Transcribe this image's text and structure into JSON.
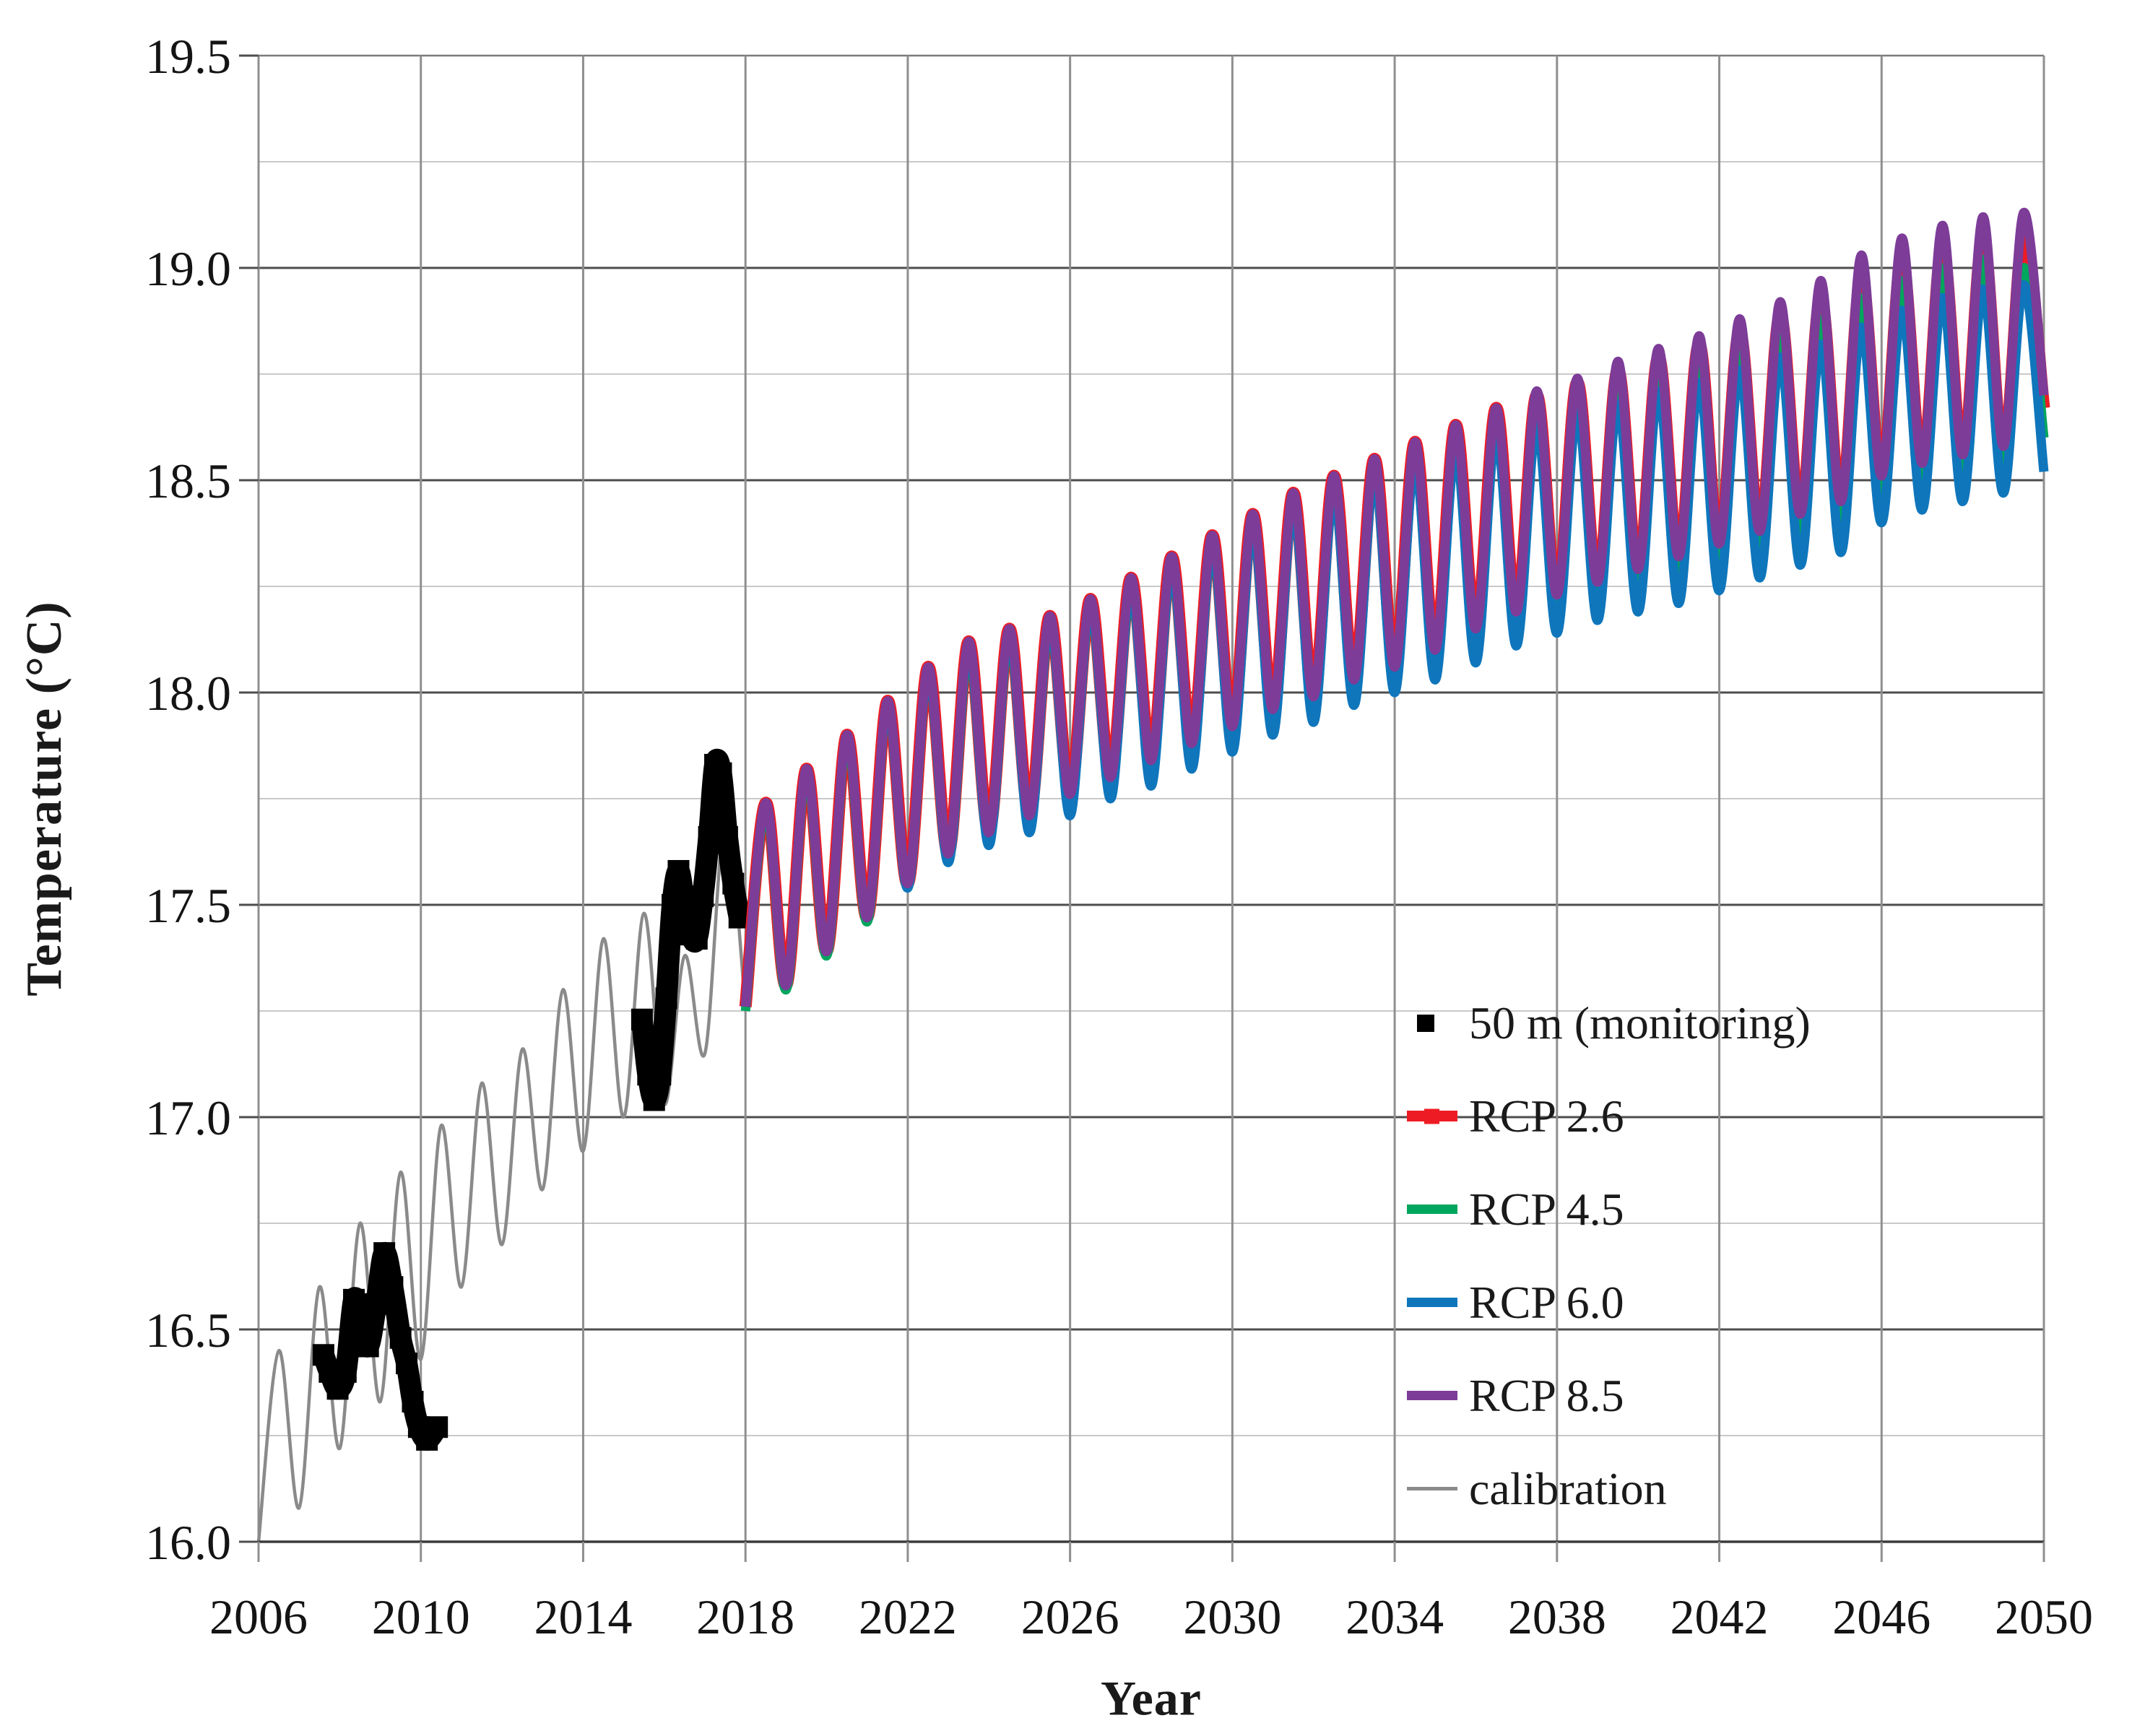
{
  "page": {
    "background": "#ffffff"
  },
  "chart_data": {
    "type": "line",
    "title": "",
    "xlabel": "Year",
    "ylabel": "Temperature (°C)",
    "xlim": [
      2006,
      2050
    ],
    "ylim": [
      16.0,
      19.5
    ],
    "x_ticks": [
      2006,
      2010,
      2014,
      2018,
      2022,
      2026,
      2030,
      2034,
      2038,
      2042,
      2046,
      2050
    ],
    "y_ticks": [
      "16.0",
      "16.5",
      "17.0",
      "17.5",
      "18.0",
      "18.5",
      "19.0",
      "19.5"
    ],
    "y_minor_ticks": [
      16.25,
      16.75,
      17.25,
      17.75,
      18.25,
      18.75,
      19.25
    ],
    "grid": "major-and-minor-horizontal, major-vertical",
    "legend_position": "inside lower right",
    "colors": {
      "grid_major": "#4d4d4d",
      "grid_minor": "#c9c9c9",
      "grid_vertical": "#8f8f8f",
      "axis_line": "#3c3c3c",
      "text": "#141414"
    },
    "series": [
      {
        "id": "monitoring",
        "label": "50 m (monitoring)",
        "color": "#000000",
        "swatch": "square",
        "segments": [
          [
            [
              2007.6,
              16.44
            ],
            [
              2007.75,
              16.4
            ],
            [
              2007.95,
              16.36
            ],
            [
              2008.15,
              16.4
            ],
            [
              2008.35,
              16.57
            ],
            [
              2008.5,
              16.52
            ],
            [
              2008.7,
              16.46
            ],
            [
              2008.9,
              16.56
            ],
            [
              2009.1,
              16.68
            ],
            [
              2009.3,
              16.6
            ],
            [
              2009.5,
              16.48
            ],
            [
              2009.65,
              16.42
            ],
            [
              2009.8,
              16.33
            ],
            [
              2009.95,
              16.27
            ],
            [
              2010.15,
              16.24
            ],
            [
              2010.4,
              16.27
            ]
          ],
          [
            [
              2015.45,
              17.23
            ],
            [
              2015.6,
              17.1
            ],
            [
              2015.75,
              17.04
            ],
            [
              2015.9,
              17.1
            ],
            [
              2016.05,
              17.28
            ],
            [
              2016.2,
              17.5
            ],
            [
              2016.35,
              17.58
            ],
            [
              2016.5,
              17.5
            ],
            [
              2016.65,
              17.43
            ],
            [
              2016.8,
              17.42
            ],
            [
              2016.95,
              17.52
            ],
            [
              2017.1,
              17.66
            ],
            [
              2017.25,
              17.83
            ],
            [
              2017.4,
              17.81
            ],
            [
              2017.55,
              17.66
            ],
            [
              2017.7,
              17.55
            ],
            [
              2017.85,
              17.47
            ]
          ]
        ]
      },
      {
        "id": "rcp26",
        "label": "RCP 2.6",
        "color": "#ed1c24",
        "swatch": "line-marker",
        "start": 2018.0,
        "step": 0.5,
        "values": [
          17.26,
          17.74,
          17.31,
          17.82,
          17.39,
          17.9,
          17.47,
          17.98,
          17.55,
          18.06,
          17.62,
          18.12,
          17.67,
          18.15,
          17.71,
          18.18,
          17.76,
          18.22,
          17.8,
          18.27,
          17.84,
          18.32,
          17.88,
          18.37,
          17.92,
          18.42,
          17.96,
          18.47,
          17.99,
          18.51,
          18.03,
          18.55,
          18.06,
          18.59,
          18.1,
          18.63,
          18.15,
          18.67,
          18.19,
          18.7,
          18.22,
          18.73,
          18.25,
          18.76,
          18.28,
          18.79,
          18.31,
          18.82,
          18.34,
          18.85,
          18.37,
          18.89,
          18.41,
          18.93,
          18.44,
          18.98,
          18.5,
          19.02,
          18.53,
          19.05,
          18.55,
          19.07,
          18.56,
          19.08,
          18.67
        ]
      },
      {
        "id": "rcp45",
        "label": "RCP 4.5",
        "color": "#00a65d",
        "swatch": "line",
        "start": 2018.0,
        "step": 0.5,
        "values": [
          17.25,
          17.73,
          17.3,
          17.81,
          17.38,
          17.89,
          17.46,
          17.97,
          17.54,
          18.05,
          17.6,
          18.1,
          17.65,
          18.13,
          17.69,
          18.16,
          17.74,
          18.2,
          17.77,
          18.24,
          17.81,
          18.29,
          17.85,
          18.34,
          17.89,
          18.39,
          17.93,
          18.44,
          17.96,
          18.48,
          18.0,
          18.52,
          18.03,
          18.56,
          18.06,
          18.6,
          18.11,
          18.63,
          18.15,
          18.66,
          18.18,
          18.69,
          18.21,
          18.72,
          18.24,
          18.75,
          18.27,
          18.78,
          18.29,
          18.81,
          18.32,
          18.84,
          18.36,
          18.88,
          18.39,
          18.93,
          18.44,
          18.97,
          18.47,
          19.0,
          18.49,
          19.02,
          18.5,
          19.0,
          18.6
        ]
      },
      {
        "id": "rcp60",
        "label": "RCP 6.0",
        "color": "#0f76bc",
        "swatch": "line",
        "start": 2018.0,
        "step": 0.5,
        "values": [
          17.26,
          17.74,
          17.31,
          17.82,
          17.39,
          17.9,
          17.47,
          17.97,
          17.54,
          18.05,
          17.6,
          18.11,
          17.64,
          18.14,
          17.67,
          18.17,
          17.71,
          18.21,
          17.75,
          18.25,
          17.78,
          18.3,
          17.82,
          18.35,
          17.86,
          18.39,
          17.9,
          18.44,
          17.93,
          18.47,
          17.97,
          18.51,
          18.0,
          18.54,
          18.03,
          18.57,
          18.07,
          18.61,
          18.11,
          18.63,
          18.14,
          18.66,
          18.17,
          18.68,
          18.19,
          18.71,
          18.21,
          18.73,
          18.24,
          18.76,
          18.27,
          18.79,
          18.3,
          18.82,
          18.33,
          18.86,
          18.4,
          18.9,
          18.43,
          18.93,
          18.45,
          18.95,
          18.47,
          18.96,
          18.52
        ]
      },
      {
        "id": "rcp85",
        "label": "RCP 8.5",
        "color": "#7d3c98",
        "swatch": "line",
        "start": 2018.0,
        "step": 0.5,
        "values": [
          17.26,
          17.74,
          17.31,
          17.82,
          17.39,
          17.9,
          17.47,
          17.98,
          17.55,
          18.06,
          17.62,
          18.12,
          17.67,
          18.15,
          17.71,
          18.18,
          17.76,
          18.22,
          17.8,
          18.27,
          17.84,
          18.32,
          17.88,
          18.37,
          17.92,
          18.42,
          17.96,
          18.47,
          17.99,
          18.51,
          18.03,
          18.55,
          18.06,
          18.59,
          18.1,
          18.63,
          18.15,
          18.67,
          18.19,
          18.71,
          18.23,
          18.74,
          18.26,
          18.78,
          18.29,
          18.81,
          18.32,
          18.84,
          18.35,
          18.88,
          18.38,
          18.92,
          18.42,
          18.97,
          18.45,
          19.03,
          18.51,
          19.07,
          18.54,
          19.1,
          18.56,
          19.12,
          18.58,
          19.13,
          18.7
        ]
      },
      {
        "id": "calibration",
        "label": "calibration",
        "color": "#8a8a8a",
        "swatch": "thin-line",
        "start": 2006.0,
        "step": 0.5,
        "values": [
          16.0,
          16.45,
          16.08,
          16.6,
          16.22,
          16.75,
          16.33,
          16.87,
          16.43,
          16.98,
          16.6,
          17.08,
          16.7,
          17.16,
          16.83,
          17.3,
          16.92,
          17.42,
          17.0,
          17.48,
          17.03,
          17.38,
          17.15,
          17.7,
          17.26
        ]
      }
    ]
  }
}
